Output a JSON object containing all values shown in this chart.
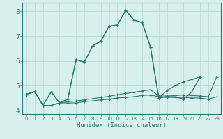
{
  "xlabel": "Humidex (Indice chaleur)",
  "x_values": [
    0,
    1,
    2,
    3,
    4,
    5,
    6,
    7,
    8,
    9,
    10,
    11,
    12,
    13,
    14,
    15,
    16,
    17,
    18,
    19,
    20,
    21,
    22,
    23
  ],
  "line_main": [
    4.65,
    4.75,
    4.2,
    4.75,
    4.3,
    4.45,
    6.05,
    5.95,
    6.6,
    6.8,
    7.4,
    7.45,
    8.05,
    7.65,
    7.55,
    6.55,
    4.5,
    4.55,
    4.55,
    4.45,
    4.75,
    5.35,
    null,
    null
  ],
  "line_upper": [
    4.65,
    4.75,
    4.2,
    4.75,
    4.3,
    4.45,
    6.05,
    5.95,
    6.6,
    6.8,
    7.4,
    7.45,
    8.05,
    7.65,
    7.55,
    6.55,
    4.5,
    4.8,
    5.0,
    5.15,
    5.25,
    5.35,
    null,
    null
  ],
  "line_mid": [
    4.65,
    4.75,
    4.2,
    4.2,
    4.3,
    4.35,
    4.38,
    4.42,
    4.47,
    4.52,
    4.57,
    4.63,
    4.68,
    4.73,
    4.78,
    4.83,
    4.58,
    4.58,
    4.6,
    4.62,
    4.6,
    4.58,
    4.55,
    5.35
  ],
  "line_lower": [
    4.65,
    4.75,
    4.2,
    4.2,
    4.3,
    4.3,
    4.3,
    4.35,
    4.38,
    4.42,
    4.45,
    4.5,
    4.52,
    4.55,
    4.6,
    4.62,
    4.55,
    4.52,
    4.52,
    4.52,
    4.5,
    4.5,
    4.45,
    4.55
  ],
  "color": "#2a7a72",
  "bg_color": "#d8f0ed",
  "grid_color": "#b8d8d4",
  "ylim": [
    3.85,
    8.35
  ],
  "xlim": [
    -0.5,
    23.5
  ],
  "yticks": [
    4,
    5,
    6,
    7,
    8
  ],
  "xticks": [
    0,
    1,
    2,
    3,
    4,
    5,
    6,
    7,
    8,
    9,
    10,
    11,
    12,
    13,
    14,
    15,
    16,
    17,
    18,
    19,
    20,
    21,
    22,
    23
  ]
}
